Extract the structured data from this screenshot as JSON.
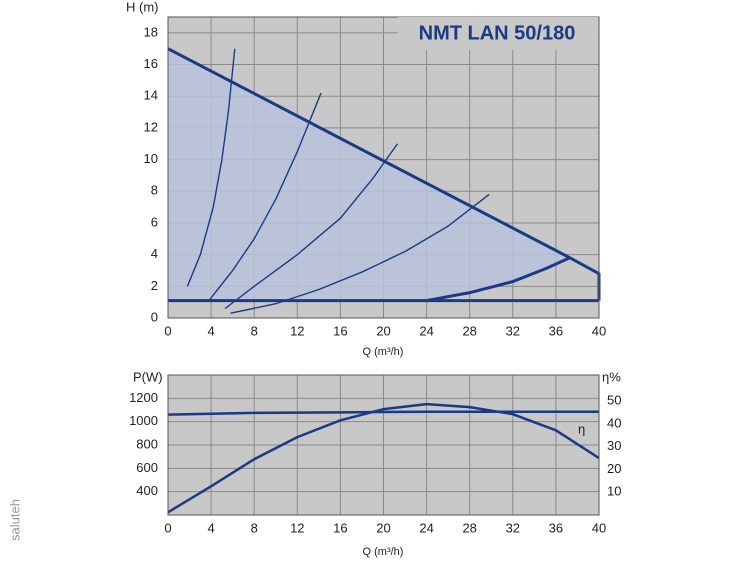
{
  "chart_data": [
    {
      "type": "line",
      "title": "NMT LAN 50/180",
      "y_label": "H (m)",
      "x_label": "Q (m³/h)",
      "xlim": [
        0,
        40
      ],
      "ylim": [
        0,
        19
      ],
      "xticks": [
        0,
        4,
        8,
        12,
        16,
        20,
        24,
        28,
        32,
        36,
        40
      ],
      "yticks": [
        0,
        2,
        4,
        6,
        8,
        10,
        12,
        14,
        16,
        18
      ],
      "grid": true,
      "area_color": "#b8c2dc",
      "series": [
        {
          "color": "#1b3a86",
          "line_width": 3,
          "x": [
            0,
            37.3,
            40,
            40
          ],
          "values": [
            17,
            3.8,
            2.8,
            1.1
          ]
        },
        {
          "color": "#1b3a86",
          "line_width": 3,
          "x": [
            0,
            40
          ],
          "values": [
            1.1,
            1.1
          ]
        },
        {
          "color": "#1b3a86",
          "line_width": 3,
          "x": [
            24,
            28,
            32,
            35,
            37.3
          ],
          "values": [
            1.1,
            1.6,
            2.3,
            3.1,
            3.8
          ]
        },
        {
          "color": "#1b3a86",
          "line_width": 1.4,
          "x": [
            1.8,
            3,
            4.2,
            5,
            5.6,
            6.2
          ],
          "values": [
            2,
            4,
            7,
            10,
            13,
            17
          ]
        },
        {
          "color": "#1b3a86",
          "line_width": 1.4,
          "x": [
            3.8,
            6,
            8,
            10,
            12,
            14.2
          ],
          "values": [
            1.1,
            3,
            5,
            7.5,
            10.5,
            14.2
          ]
        },
        {
          "color": "#1b3a86",
          "line_width": 1.4,
          "x": [
            5.3,
            8,
            12,
            16,
            19,
            21.3
          ],
          "values": [
            0.6,
            2,
            4,
            6.3,
            8.8,
            11
          ]
        },
        {
          "color": "#1b3a86",
          "line_width": 1.4,
          "x": [
            5.8,
            10,
            14,
            18,
            22,
            26,
            29.8
          ],
          "values": [
            0.3,
            0.9,
            1.8,
            2.9,
            4.2,
            5.8,
            7.8
          ]
        }
      ]
    },
    {
      "type": "line",
      "y_label": "P(W)",
      "y2_label": "η%",
      "x_label": "Q (m³/h)",
      "annotation": "η",
      "xlim": [
        0,
        40
      ],
      "ylim": [
        200,
        1400
      ],
      "y2lim": [
        0,
        61.5
      ],
      "xticks": [
        0,
        4,
        8,
        12,
        16,
        20,
        24,
        28,
        32,
        36,
        40
      ],
      "yticks": [
        400,
        600,
        800,
        1000,
        1200
      ],
      "y2ticks": [
        10,
        20,
        30,
        40,
        50
      ],
      "grid": true,
      "series": [
        {
          "color": "#1b3a86",
          "line_width": 2.5,
          "x": [
            0,
            8,
            16,
            24,
            32,
            40
          ],
          "values": [
            1060,
            1075,
            1080,
            1085,
            1085,
            1085
          ]
        },
        {
          "color": "#1b3a86",
          "line_width": 2.5,
          "axis": "y2",
          "x": [
            0,
            4,
            8,
            12,
            16,
            20,
            24,
            28,
            32,
            36,
            40
          ],
          "values": [
            1.2,
            12.6,
            24.5,
            34.2,
            41.6,
            46.5,
            48.7,
            47.4,
            44.3,
            37.2,
            25
          ]
        }
      ]
    },
    {
      "watermark": "saluteh"
    }
  ]
}
